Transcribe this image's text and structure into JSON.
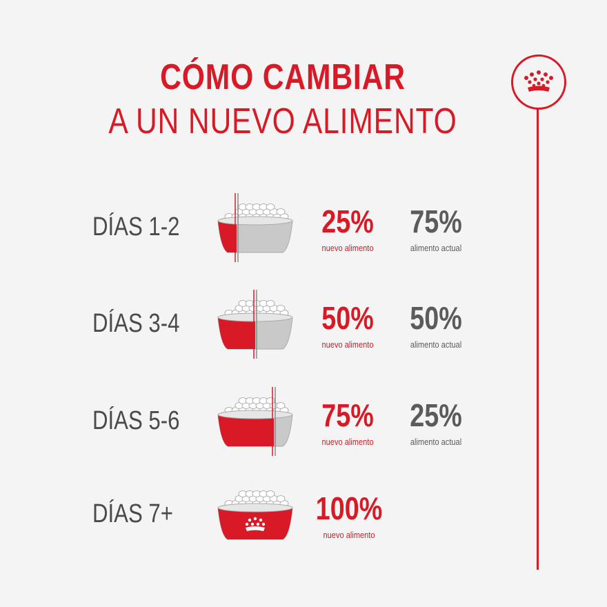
{
  "header": {
    "title_line1": "CÓMO CAMBIAR",
    "title_line2": "A UN NUEVO ALIMENTO"
  },
  "timeline": {
    "icon": "crown-icon"
  },
  "colors": {
    "brand_red": "#d81a26",
    "gray_text": "#5b5b5b",
    "background": "#f4f4f4"
  },
  "steps": [
    {
      "days": "DÍAS 1-2",
      "new_pct": "25%",
      "new_label": "nuevo alimento",
      "current_pct": "75%",
      "current_label": "alimento actual",
      "new_fraction": 0.25
    },
    {
      "days": "DÍAS 3-4",
      "new_pct": "50%",
      "new_label": "nuevo alimento",
      "current_pct": "50%",
      "current_label": "alimento actual",
      "new_fraction": 0.5
    },
    {
      "days": "DÍAS 5-6",
      "new_pct": "75%",
      "new_label": "nuevo alimento",
      "current_pct": "25%",
      "current_label": "alimento actual",
      "new_fraction": 0.75
    },
    {
      "days": "DÍAS 7+",
      "new_pct": "100%",
      "new_label": "nuevo alimento",
      "new_fraction": 1.0
    }
  ]
}
